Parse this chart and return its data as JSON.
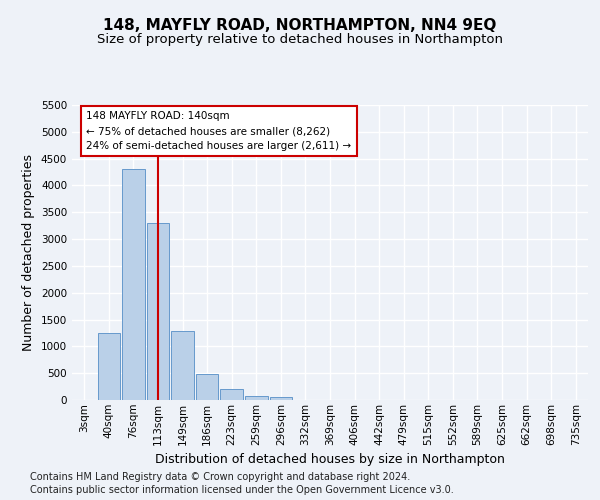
{
  "title": "148, MAYFLY ROAD, NORTHAMPTON, NN4 9EQ",
  "subtitle": "Size of property relative to detached houses in Northampton",
  "xlabel": "Distribution of detached houses by size in Northampton",
  "ylabel": "Number of detached properties",
  "categories": [
    "3sqm",
    "40sqm",
    "76sqm",
    "113sqm",
    "149sqm",
    "186sqm",
    "223sqm",
    "259sqm",
    "296sqm",
    "332sqm",
    "369sqm",
    "406sqm",
    "442sqm",
    "479sqm",
    "515sqm",
    "552sqm",
    "589sqm",
    "625sqm",
    "662sqm",
    "698sqm",
    "735sqm"
  ],
  "values": [
    0,
    1250,
    4300,
    3300,
    1280,
    480,
    200,
    80,
    55,
    0,
    0,
    0,
    0,
    0,
    0,
    0,
    0,
    0,
    0,
    0,
    0
  ],
  "bar_color": "#bad0e8",
  "bar_edge_color": "#6699cc",
  "red_line_x": 3,
  "annotation_text_line1": "148 MAYFLY ROAD: 140sqm",
  "annotation_text_line2": "← 75% of detached houses are smaller (8,262)",
  "annotation_text_line3": "24% of semi-detached houses are larger (2,611) →",
  "ylim_max": 5500,
  "yticks": [
    0,
    500,
    1000,
    1500,
    2000,
    2500,
    3000,
    3500,
    4000,
    4500,
    5000,
    5500
  ],
  "footer_line1": "Contains HM Land Registry data © Crown copyright and database right 2024.",
  "footer_line2": "Contains public sector information licensed under the Open Government Licence v3.0.",
  "bg_color": "#eef2f8",
  "grid_color": "#ffffff",
  "title_fontsize": 11,
  "subtitle_fontsize": 9.5,
  "axis_label_fontsize": 9,
  "tick_fontsize": 7.5,
  "footer_fontsize": 7
}
